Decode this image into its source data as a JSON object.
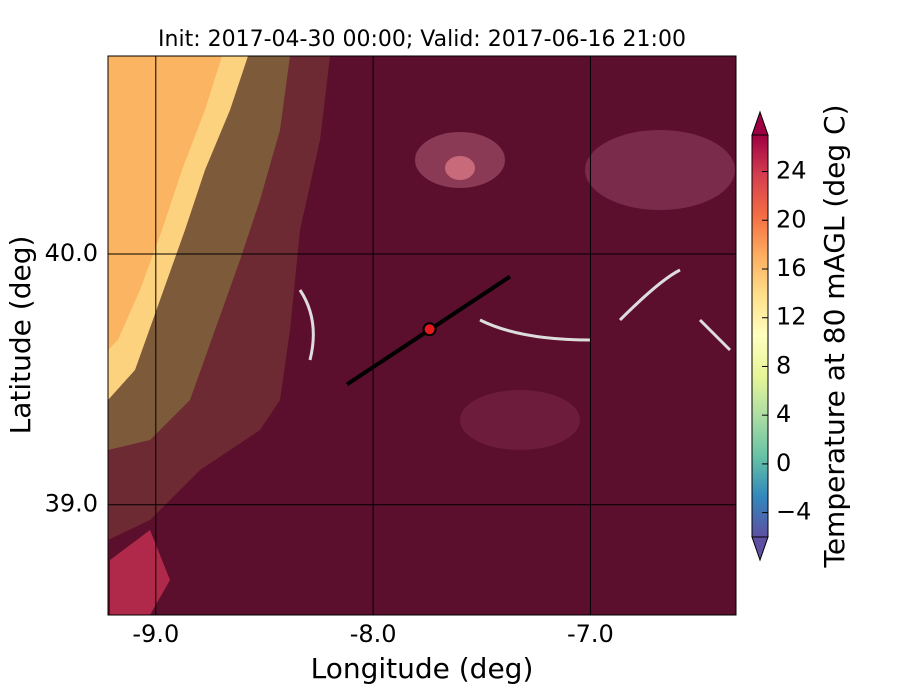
{
  "chart_data": {
    "type": "map",
    "title": "Init: 2017-04-30 00:00; Valid: 2017-06-16 21:00",
    "x_label": "Longitude (deg)",
    "y_label": "Latitude (deg)",
    "xlim": [
      -9.22,
      -6.33
    ],
    "ylim": [
      38.56,
      40.79
    ],
    "xticks": [
      {
        "value": -9,
        "label": "-9.0"
      },
      {
        "value": -8,
        "label": "-8.0"
      },
      {
        "value": -7,
        "label": "-7.0"
      }
    ],
    "yticks": [
      {
        "value": 39,
        "label": "39.0"
      },
      {
        "value": 40,
        "label": "40.0"
      }
    ],
    "grid": true,
    "colorbar": {
      "label": "Temperature at 80 mAGL (deg C)",
      "lim": [
        -6,
        27
      ],
      "ticks": [
        {
          "value": -4,
          "label": "−4"
        },
        0,
        4,
        8,
        12,
        16,
        20,
        24
      ]
    },
    "transect": {
      "x": [
        -8.12,
        -7.37
      ],
      "y": [
        39.48,
        39.91
      ],
      "color": "#000000"
    },
    "point": {
      "x": -7.74,
      "y": 39.7,
      "color": "#e31a1c"
    }
  }
}
